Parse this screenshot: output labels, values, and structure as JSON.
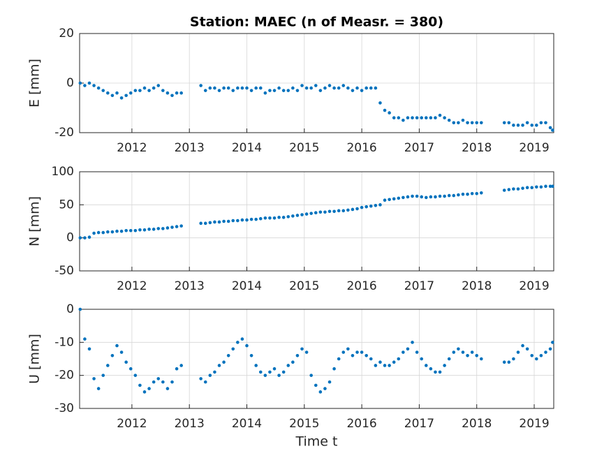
{
  "chart_data": [
    {
      "type": "scatter",
      "title": "Station: MAEC (n of Measr. = 380)",
      "ylabel": "E [mm]",
      "color": "#0072bd",
      "grid": true,
      "xlim": [
        2011.09,
        2019.34
      ],
      "xticks": [
        2012,
        2013,
        2014,
        2015,
        2016,
        2017,
        2018,
        2019
      ],
      "ylim": [
        -20,
        20
      ],
      "yticks": [
        -20,
        0,
        20
      ],
      "x": [
        2011.1,
        2011.18,
        2011.26,
        2011.34,
        2011.42,
        2011.5,
        2011.58,
        2011.66,
        2011.74,
        2011.82,
        2011.9,
        2011.98,
        2012.06,
        2012.14,
        2012.22,
        2012.3,
        2012.38,
        2012.46,
        2012.54,
        2012.62,
        2012.7,
        2012.78,
        2012.86,
        2013.2,
        2013.28,
        2013.36,
        2013.44,
        2013.52,
        2013.6,
        2013.68,
        2013.76,
        2013.84,
        2013.92,
        2014.0,
        2014.08,
        2014.16,
        2014.24,
        2014.32,
        2014.4,
        2014.48,
        2014.56,
        2014.64,
        2014.72,
        2014.8,
        2014.88,
        2014.96,
        2015.04,
        2015.12,
        2015.2,
        2015.28,
        2015.36,
        2015.44,
        2015.52,
        2015.6,
        2015.68,
        2015.76,
        2015.84,
        2015.92,
        2016.0,
        2016.08,
        2016.16,
        2016.24,
        2016.32,
        2016.4,
        2016.48,
        2016.56,
        2016.64,
        2016.72,
        2016.8,
        2016.88,
        2016.96,
        2017.04,
        2017.12,
        2017.2,
        2017.28,
        2017.36,
        2017.44,
        2017.52,
        2017.6,
        2017.68,
        2017.76,
        2017.84,
        2017.92,
        2018.0,
        2018.08,
        2018.48,
        2018.56,
        2018.64,
        2018.72,
        2018.8,
        2018.88,
        2018.96,
        2019.04,
        2019.12,
        2019.2,
        2019.28,
        2019.32
      ],
      "values": [
        0,
        -1,
        0,
        -1,
        -2,
        -3,
        -4,
        -5,
        -4,
        -6,
        -5,
        -4,
        -3,
        -3,
        -2,
        -3,
        -2,
        -1,
        -3,
        -4,
        -5,
        -4,
        -4,
        -1,
        -3,
        -2,
        -2,
        -3,
        -2,
        -2,
        -3,
        -2,
        -2,
        -2,
        -3,
        -2,
        -2,
        -4,
        -3,
        -3,
        -2,
        -3,
        -3,
        -2,
        -3,
        -1,
        -2,
        -2,
        -1,
        -3,
        -2,
        -1,
        -2,
        -2,
        -1,
        -2,
        -3,
        -2,
        -3,
        -2,
        -2,
        -2,
        -8,
        -11,
        -12,
        -14,
        -14,
        -15,
        -14,
        -14,
        -14,
        -14,
        -14,
        -14,
        -14,
        -13,
        -14,
        -15,
        -16,
        -16,
        -15,
        -16,
        -16,
        -16,
        -16,
        -16,
        -16,
        -17,
        -17,
        -17,
        -16,
        -17,
        -17,
        -16,
        -16,
        -18,
        -19
      ]
    },
    {
      "type": "scatter",
      "ylabel": "N [mm]",
      "color": "#0072bd",
      "grid": true,
      "xlim": [
        2011.09,
        2019.34
      ],
      "xticks": [
        2012,
        2013,
        2014,
        2015,
        2016,
        2017,
        2018,
        2019
      ],
      "ylim": [
        -50,
        100
      ],
      "yticks": [
        -50,
        0,
        50,
        100
      ],
      "x": [
        2011.1,
        2011.18,
        2011.26,
        2011.34,
        2011.42,
        2011.5,
        2011.58,
        2011.66,
        2011.74,
        2011.82,
        2011.9,
        2011.98,
        2012.06,
        2012.14,
        2012.22,
        2012.3,
        2012.38,
        2012.46,
        2012.54,
        2012.62,
        2012.7,
        2012.78,
        2012.86,
        2013.2,
        2013.28,
        2013.36,
        2013.44,
        2013.52,
        2013.6,
        2013.68,
        2013.76,
        2013.84,
        2013.92,
        2014.0,
        2014.08,
        2014.16,
        2014.24,
        2014.32,
        2014.4,
        2014.48,
        2014.56,
        2014.64,
        2014.72,
        2014.8,
        2014.88,
        2014.96,
        2015.04,
        2015.12,
        2015.2,
        2015.28,
        2015.36,
        2015.44,
        2015.52,
        2015.6,
        2015.68,
        2015.76,
        2015.84,
        2015.92,
        2016.0,
        2016.08,
        2016.16,
        2016.24,
        2016.32,
        2016.4,
        2016.48,
        2016.56,
        2016.64,
        2016.72,
        2016.8,
        2016.88,
        2016.96,
        2017.04,
        2017.12,
        2017.2,
        2017.28,
        2017.36,
        2017.44,
        2017.52,
        2017.6,
        2017.68,
        2017.76,
        2017.84,
        2017.92,
        2018.0,
        2018.08,
        2018.48,
        2018.56,
        2018.64,
        2018.72,
        2018.8,
        2018.88,
        2018.96,
        2019.04,
        2019.12,
        2019.2,
        2019.28,
        2019.32
      ],
      "values": [
        0,
        0,
        1,
        7,
        8,
        8,
        9,
        9,
        10,
        10,
        11,
        11,
        11,
        12,
        12,
        13,
        13,
        14,
        14,
        15,
        16,
        17,
        18,
        22,
        22,
        23,
        24,
        24,
        25,
        25,
        26,
        26,
        27,
        27,
        28,
        28,
        29,
        30,
        30,
        30,
        31,
        31,
        32,
        33,
        34,
        35,
        36,
        37,
        38,
        39,
        39,
        40,
        40,
        41,
        41,
        42,
        43,
        44,
        46,
        47,
        48,
        49,
        50,
        57,
        58,
        59,
        60,
        61,
        62,
        63,
        63,
        62,
        61,
        62,
        62,
        63,
        63,
        64,
        64,
        65,
        66,
        66,
        67,
        67,
        68,
        72,
        73,
        74,
        74,
        75,
        76,
        76,
        77,
        77,
        78,
        78,
        78
      ]
    },
    {
      "type": "scatter",
      "ylabel": "U [mm]",
      "xlabel": "Time t",
      "color": "#0072bd",
      "grid": true,
      "xlim": [
        2011.09,
        2019.34
      ],
      "xticks": [
        2012,
        2013,
        2014,
        2015,
        2016,
        2017,
        2018,
        2019
      ],
      "ylim": [
        -30,
        0
      ],
      "yticks": [
        -30,
        -20,
        -10,
        0
      ],
      "x": [
        2011.1,
        2011.18,
        2011.26,
        2011.34,
        2011.42,
        2011.5,
        2011.58,
        2011.66,
        2011.74,
        2011.82,
        2011.9,
        2011.98,
        2012.06,
        2012.14,
        2012.22,
        2012.3,
        2012.38,
        2012.46,
        2012.54,
        2012.62,
        2012.7,
        2012.78,
        2012.86,
        2013.2,
        2013.28,
        2013.36,
        2013.44,
        2013.52,
        2013.6,
        2013.68,
        2013.76,
        2013.84,
        2013.92,
        2014.0,
        2014.08,
        2014.16,
        2014.24,
        2014.32,
        2014.4,
        2014.48,
        2014.56,
        2014.64,
        2014.72,
        2014.8,
        2014.88,
        2014.96,
        2015.04,
        2015.12,
        2015.2,
        2015.28,
        2015.36,
        2015.44,
        2015.52,
        2015.6,
        2015.68,
        2015.76,
        2015.84,
        2015.92,
        2016.0,
        2016.08,
        2016.16,
        2016.24,
        2016.32,
        2016.4,
        2016.48,
        2016.56,
        2016.64,
        2016.72,
        2016.8,
        2016.88,
        2016.96,
        2017.04,
        2017.12,
        2017.2,
        2017.28,
        2017.36,
        2017.44,
        2017.52,
        2017.6,
        2017.68,
        2017.76,
        2017.84,
        2017.92,
        2018.0,
        2018.08,
        2018.48,
        2018.56,
        2018.64,
        2018.72,
        2018.8,
        2018.88,
        2018.96,
        2019.04,
        2019.12,
        2019.2,
        2019.28,
        2019.32
      ],
      "values": [
        0,
        -9,
        -12,
        -21,
        -24,
        -20,
        -17,
        -14,
        -11,
        -13,
        -16,
        -18,
        -20,
        -23,
        -25,
        -24,
        -22,
        -21,
        -22,
        -24,
        -22,
        -18,
        -17,
        -21,
        -22,
        -20,
        -19,
        -17,
        -16,
        -14,
        -12,
        -10,
        -9,
        -11,
        -14,
        -17,
        -19,
        -20,
        -19,
        -18,
        -20,
        -19,
        -17,
        -16,
        -14,
        -12,
        -13,
        -20,
        -23,
        -25,
        -24,
        -22,
        -18,
        -15,
        -13,
        -12,
        -14,
        -13,
        -13,
        -14,
        -15,
        -17,
        -16,
        -17,
        -17,
        -16,
        -15,
        -13,
        -12,
        -10,
        -13,
        -15,
        -17,
        -18,
        -19,
        -19,
        -17,
        -15,
        -13,
        -12,
        -13,
        -14,
        -13,
        -14,
        -15,
        -16,
        -16,
        -15,
        -13,
        -11,
        -12,
        -14,
        -15,
        -14,
        -13,
        -12,
        -10
      ]
    }
  ]
}
